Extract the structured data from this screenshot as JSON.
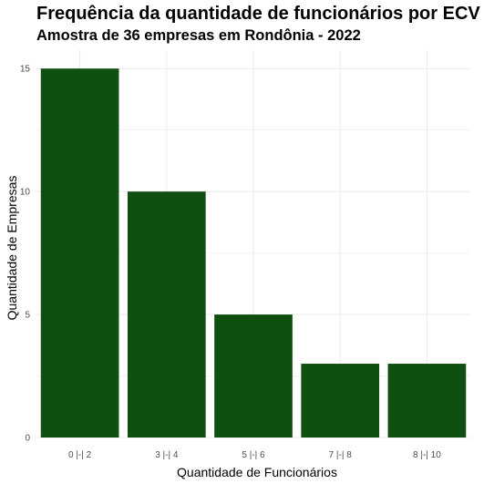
{
  "chart_data": {
    "type": "bar",
    "title": "Frequência da quantidade de funcionários por ECV",
    "subtitle": "Amostra de 36 empresas em Rondônia - 2022",
    "xlabel": "Quantidade de Funcionários",
    "ylabel": "Quantidade de Empresas",
    "categories": [
      "0 |-| 2",
      "3 |-| 4",
      "5 |-| 6",
      "7 |-| 8",
      "8 |-| 10"
    ],
    "values": [
      15,
      10,
      5,
      3,
      3
    ],
    "yticks": [
      0,
      5,
      10,
      15
    ],
    "ylim": [
      0,
      15.75
    ],
    "grid": true,
    "bar_color": "#0f4f0f",
    "grid_color": "#ebebeb"
  }
}
